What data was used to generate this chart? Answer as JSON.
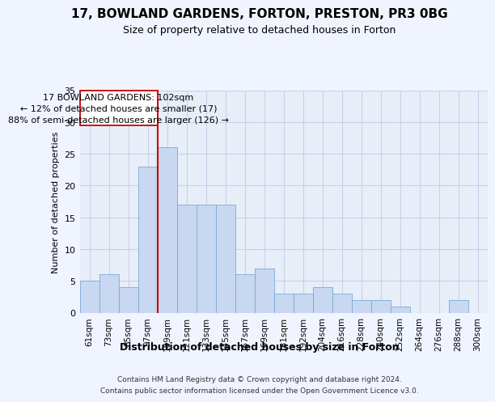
{
  "title": "17, BOWLAND GARDENS, FORTON, PRESTON, PR3 0BG",
  "subtitle": "Size of property relative to detached houses in Forton",
  "xlabel": "Distribution of detached houses by size in Forton",
  "ylabel": "Number of detached properties",
  "footer1": "Contains HM Land Registry data © Crown copyright and database right 2024.",
  "footer2": "Contains public sector information licensed under the Open Government Licence v3.0.",
  "annotation_line1": "17 BOWLAND GARDENS: 102sqm",
  "annotation_line2": "← 12% of detached houses are smaller (17)",
  "annotation_line3": "88% of semi-detached houses are larger (126) →",
  "bar_color": "#c8d8f0",
  "bar_edge_color": "#7aaad8",
  "grid_color": "#c8d0e8",
  "ref_line_color": "#cc0000",
  "categories": [
    "61sqm",
    "73sqm",
    "85sqm",
    "97sqm",
    "109sqm",
    "121sqm",
    "133sqm",
    "145sqm",
    "157sqm",
    "169sqm",
    "181sqm",
    "192sqm",
    "204sqm",
    "216sqm",
    "228sqm",
    "240sqm",
    "252sqm",
    "264sqm",
    "276sqm",
    "288sqm",
    "300sqm"
  ],
  "values": [
    5,
    6,
    4,
    23,
    26,
    17,
    17,
    17,
    6,
    7,
    3,
    3,
    4,
    3,
    2,
    2,
    1,
    0,
    0,
    2,
    0
  ],
  "ylim": [
    0,
    35
  ],
  "yticks": [
    0,
    5,
    10,
    15,
    20,
    25,
    30,
    35
  ],
  "bar_width": 1.0,
  "bg_color": "#f0f4ff",
  "plot_bg_color": "#e8eef8",
  "title_fontsize": 11,
  "subtitle_fontsize": 9,
  "xlabel_fontsize": 9,
  "ylabel_fontsize": 8,
  "tick_fontsize": 8,
  "xtick_fontsize": 7.5,
  "footer_fontsize": 6.5,
  "annot_fontsize": 8
}
